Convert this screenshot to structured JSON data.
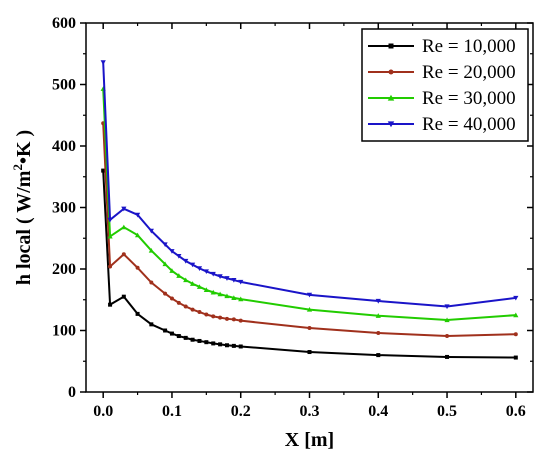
{
  "chart_data": {
    "type": "line",
    "title": "",
    "xlabel": "X [m]",
    "ylabel": "h local ( W/m²•K )",
    "ylabel_parts": {
      "prefix": "h local ( W/m",
      "sup": "2",
      "suffix": "•K )"
    },
    "xlim": [
      -0.025,
      0.625
    ],
    "ylim": [
      0,
      600
    ],
    "xticks": [
      0.0,
      0.1,
      0.2,
      0.3,
      0.4,
      0.5,
      0.6
    ],
    "xtick_labels": [
      "0.0",
      "0.1",
      "0.2",
      "0.3",
      "0.4",
      "0.5",
      "0.6"
    ],
    "yticks": [
      0,
      100,
      200,
      300,
      400,
      500,
      600
    ],
    "ytick_labels": [
      "0",
      "100",
      "200",
      "300",
      "400",
      "500",
      "600"
    ],
    "grid": false,
    "legend_position": "top-right",
    "x": [
      0.0,
      0.01,
      0.03,
      0.05,
      0.07,
      0.09,
      0.1,
      0.11,
      0.12,
      0.13,
      0.14,
      0.15,
      0.16,
      0.17,
      0.18,
      0.19,
      0.2,
      0.3,
      0.4,
      0.5,
      0.6
    ],
    "series": [
      {
        "name": "Re = 10,000",
        "color": "#000000",
        "marker": "square",
        "values": [
          360,
          142,
          155,
          127,
          110,
          100,
          95,
          91,
          88,
          85,
          83,
          81,
          79,
          77.5,
          76,
          75,
          74,
          65,
          60,
          57,
          56
        ]
      },
      {
        "name": "Re = 20,000",
        "color": "#a0301c",
        "marker": "circle",
        "values": [
          437,
          204,
          224,
          202,
          178,
          160,
          152,
          145,
          139,
          134,
          130,
          126,
          123,
          121,
          119,
          118,
          116,
          104,
          96,
          91,
          94
        ]
      },
      {
        "name": "Re = 30,000",
        "color": "#22cc00",
        "marker": "triangle-up",
        "values": [
          493,
          253,
          268,
          255,
          230,
          208,
          197,
          189,
          182,
          176,
          171,
          166,
          162,
          159,
          156,
          153,
          151,
          134,
          124,
          117,
          125
        ]
      },
      {
        "name": "Re = 40,000",
        "color": "#1a14c8",
        "marker": "triangle-down",
        "values": [
          536,
          280,
          298,
          288,
          262,
          240,
          229,
          221,
          213,
          207,
          201,
          196,
          192,
          188,
          185,
          182,
          179,
          158,
          148,
          139,
          153
        ]
      }
    ]
  }
}
